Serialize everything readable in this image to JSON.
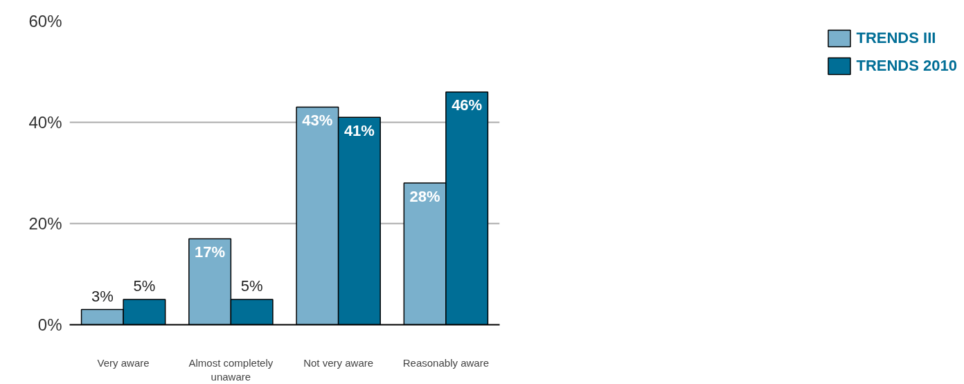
{
  "chart_data": {
    "type": "bar",
    "categories": [
      "Very aware",
      "Almost completely unaware",
      "Not very aware",
      "Reasonably aware"
    ],
    "series": [
      {
        "name": "TRENDS III",
        "color": "#7ab0cc",
        "values": [
          3,
          17,
          43,
          28
        ],
        "value_labels": [
          "3%",
          "17%",
          "43%",
          "28%"
        ]
      },
      {
        "name": "TRENDS 2010",
        "color": "#006e96",
        "values": [
          5,
          5,
          41,
          46
        ],
        "value_labels": [
          "5%",
          "5%",
          "41%",
          "46%"
        ]
      }
    ],
    "ylim": [
      0,
      60
    ],
    "yticks": [
      {
        "value": 0,
        "label": "0%"
      },
      {
        "value": 20,
        "label": "20%"
      },
      {
        "value": 40,
        "label": "40%"
      },
      {
        "value": 60,
        "label": "60%"
      }
    ],
    "grid": "y",
    "legend": "top right"
  }
}
